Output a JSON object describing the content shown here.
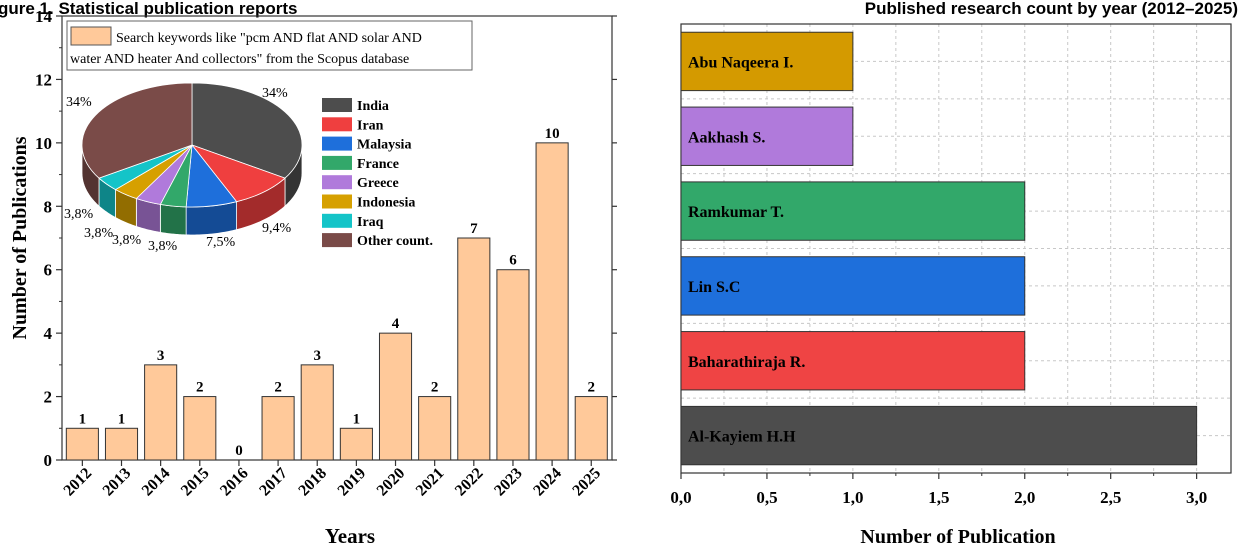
{
  "header": {
    "left_text": "gure 1. Statistical publication reports",
    "right_text": "Published research count by year (2012–2025)"
  },
  "chart_data": [
    {
      "type": "bar",
      "categories": [
        "2012",
        "2013",
        "2014",
        "2015",
        "2016",
        "2017",
        "2018",
        "2019",
        "2020",
        "2021",
        "2022",
        "2023",
        "2024",
        "2025"
      ],
      "values": [
        1,
        1,
        3,
        2,
        0,
        2,
        3,
        1,
        4,
        2,
        7,
        6,
        10,
        2
      ],
      "title": "",
      "xlabel": "Years",
      "ylabel": "Number of Publications",
      "ylim": [
        0,
        14
      ],
      "yticks": [
        0,
        2,
        4,
        6,
        8,
        10,
        12,
        14
      ],
      "bar_color": "#FFC99A",
      "legend": {
        "line1": "Search keywords like \"pcm AND flat AND solar AND",
        "line2": "water AND heater And collectors\" from the Scopus database",
        "placement": "top-left"
      },
      "grid": false
    },
    {
      "type": "pie",
      "labels": [
        "India",
        "Iran",
        "Malaysia",
        "France",
        "Greece",
        "Indonesia",
        "Iraq",
        "Other count."
      ],
      "values": [
        34,
        9.4,
        7.5,
        3.8,
        3.8,
        3.8,
        3.8,
        34
      ],
      "value_labels": [
        "34%",
        "9,4%",
        "7,5%",
        "3,8%",
        "3,8%",
        "3,8%",
        "3,8%",
        "34%"
      ],
      "colors": [
        "#4D4D4D",
        "#EF3F3F",
        "#1E6FDB",
        "#32A86A",
        "#B07ADB",
        "#D6A000",
        "#14C4C8",
        "#7A4B48"
      ],
      "legend_placement": "right"
    },
    {
      "type": "bar",
      "orientation": "horizontal",
      "categories": [
        "Al-Kayiem H.H",
        "Baharathiraja R.",
        "Lin S.C",
        "Ramkumar T.",
        "Aakhash S.",
        "Abu Naqeera I."
      ],
      "values": [
        3,
        2,
        2,
        2,
        1,
        1
      ],
      "colors": [
        "#4D4D4D",
        "#EF4444",
        "#1E6FDB",
        "#32A86A",
        "#B07ADB",
        "#D49A00"
      ],
      "title": "",
      "xlabel": "Number of Publication",
      "ylabel": "",
      "xlim": [
        0,
        3.2
      ],
      "xticks": [
        "0,0",
        "0,5",
        "1,0",
        "1,5",
        "2,0",
        "2,5",
        "3,0"
      ],
      "grid": true
    }
  ]
}
